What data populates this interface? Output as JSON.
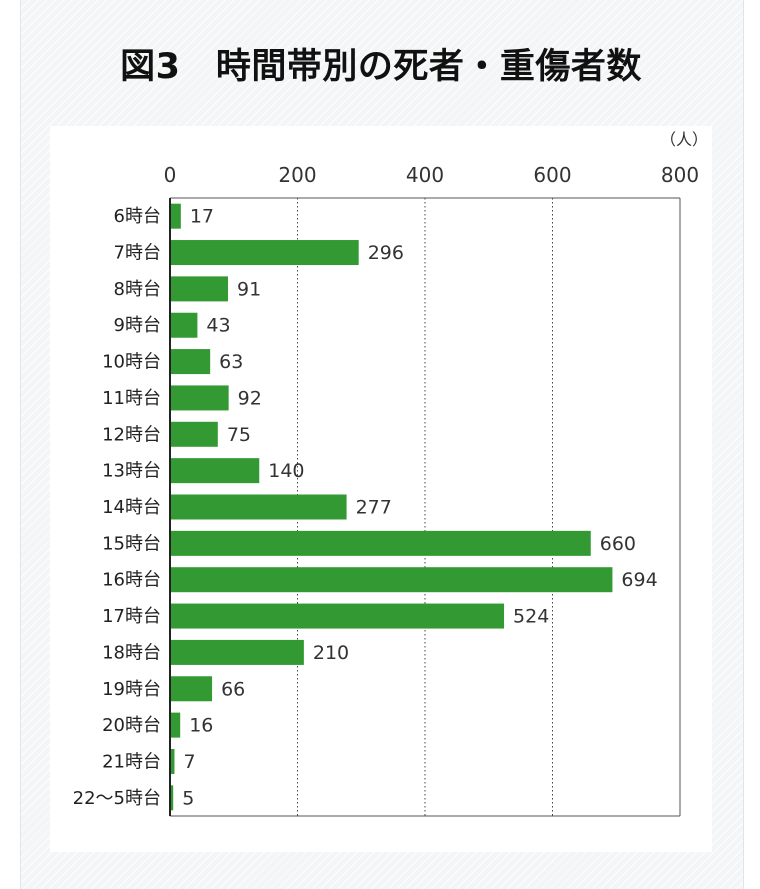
{
  "chart_data": {
    "type": "bar",
    "orientation": "horizontal",
    "title": "図3　時間帯別の死者・重傷者数",
    "unit": "（人）",
    "xlim": [
      0,
      800
    ],
    "ticks": [
      "0",
      "200",
      "400",
      "600",
      "800"
    ],
    "categories": [
      "6時台",
      "7時台",
      "8時台",
      "9時台",
      "10時台",
      "11時台",
      "12時台",
      "13時台",
      "14時台",
      "15時台",
      "16時台",
      "17時台",
      "18時台",
      "19時台",
      "20時台",
      "21時台",
      "22～5時台"
    ],
    "values": [
      17,
      296,
      91,
      43,
      63,
      92,
      75,
      140,
      277,
      660,
      694,
      524,
      210,
      66,
      16,
      7,
      5
    ],
    "grid": "vertical-dotted",
    "legend": "none",
    "bar_color": "#339933"
  }
}
